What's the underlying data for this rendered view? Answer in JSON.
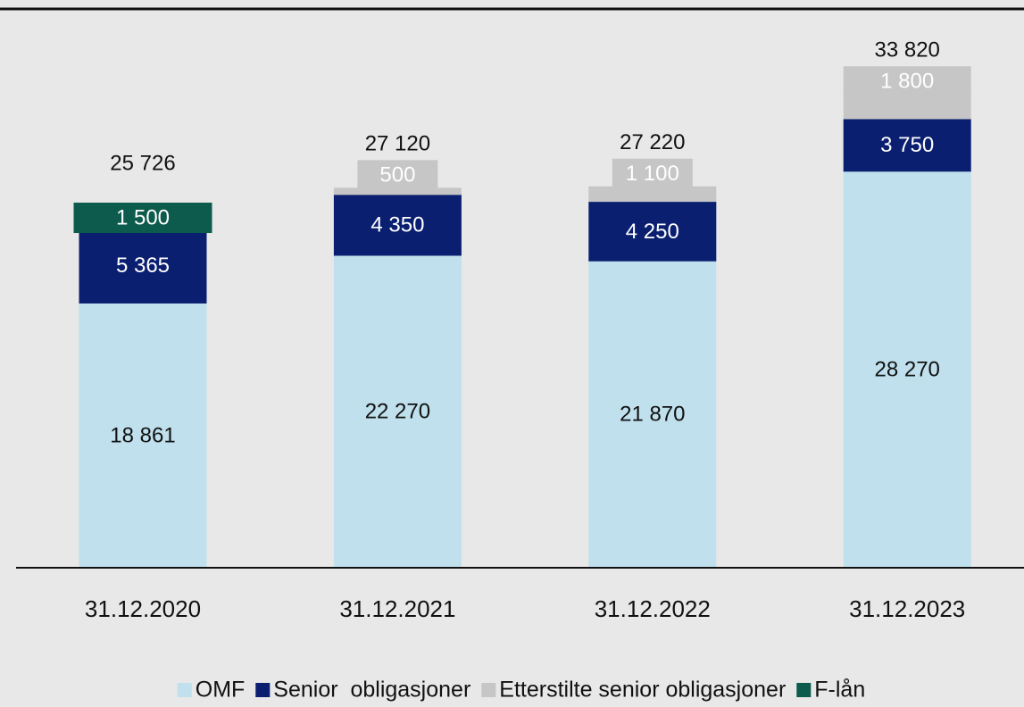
{
  "chart_data": {
    "type": "stacked_bar",
    "categories": [
      "31.12.2020",
      "31.12.2021",
      "31.12.2022",
      "31.12.2023"
    ],
    "series": [
      {
        "name": "OMF",
        "color": "#bfe0ec",
        "values": [
          18861,
          22270,
          21870,
          28270
        ],
        "value_labels": [
          "18 861",
          "22 270",
          "21 870",
          "28 270"
        ]
      },
      {
        "name": "Senior  obligasjoner",
        "color": "#0b1f70",
        "values": [
          5365,
          4350,
          4250,
          3750
        ],
        "value_labels": [
          "5 365",
          "4 350",
          "4 250",
          "3 750"
        ]
      },
      {
        "name": "Etterstilte senior obligasjoner",
        "color": "#c6c6c6",
        "values": [
          null,
          500,
          1100,
          1800
        ],
        "value_labels": [
          null,
          "500",
          "1 100",
          "1 800"
        ]
      },
      {
        "name": "F-lån",
        "color": "#0d5b4c",
        "values": [
          1500,
          null,
          null,
          null
        ],
        "value_labels": [
          "1 500",
          null,
          null,
          null
        ]
      }
    ],
    "totals": [
      25726,
      27120,
      27220,
      33820
    ],
    "total_labels": [
      "25 726",
      "27 120",
      "27 220",
      "33 820"
    ],
    "ylim": [
      0,
      36000
    ]
  }
}
